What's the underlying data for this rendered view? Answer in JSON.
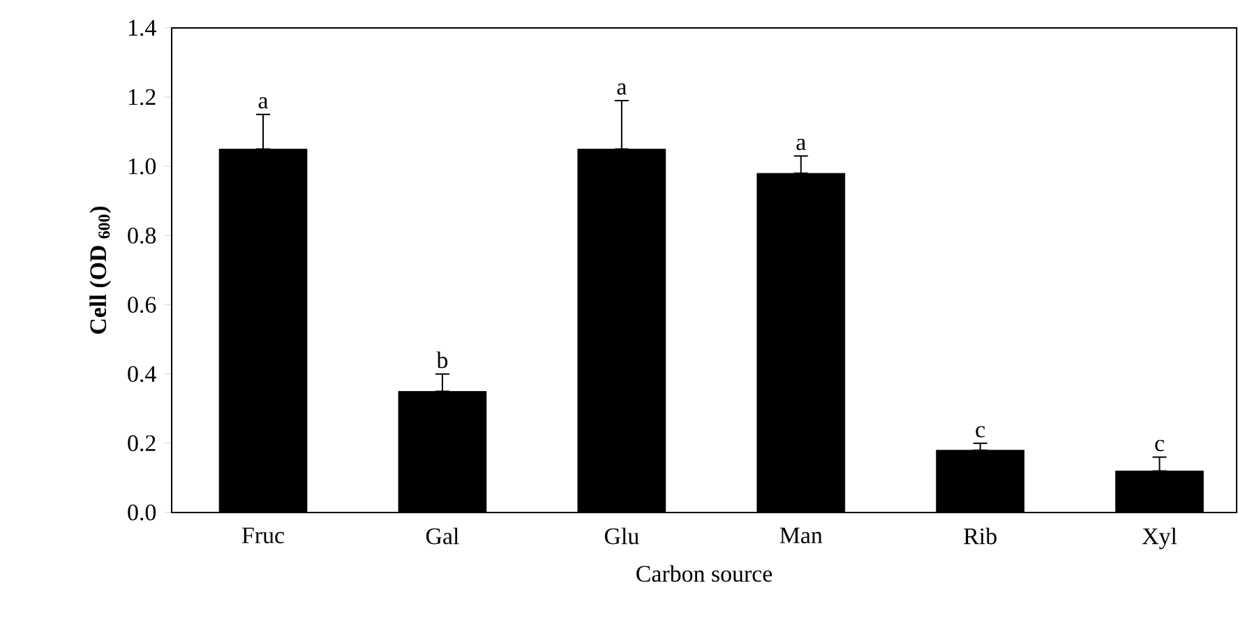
{
  "chart_data": {
    "type": "bar",
    "xlabel": "Carbon source",
    "ylabel": "**Cell (OD $_{600}$)**",
    "categories": [
      "Fruc",
      "Gal",
      "Glu",
      "Man",
      "Rib",
      "Xyl"
    ],
    "values": [
      1.05,
      0.35,
      1.05,
      0.98,
      0.18,
      0.12
    ],
    "errors": [
      [
        1.05,
        1.15
      ],
      [
        0.35,
        0.4
      ],
      [
        1.05,
        1.19
      ],
      [
        0.98,
        1.03
      ],
      [
        0.18,
        0.2
      ],
      [
        0.12,
        0.16
      ]
    ],
    "color": "#000000",
    "ylim": [
      0,
      1.4
    ],
    "yticks": [
      {
        "value": 0,
        "label": "0.0"
      },
      0.2,
      0.4,
      0.6,
      0.8,
      {
        "value": 1,
        "label": "1.0"
      },
      1.2,
      1.4
    ],
    "annotations": [
      "a",
      "b",
      "a",
      "a",
      "c",
      "c"
    ],
    "grid": false
  }
}
